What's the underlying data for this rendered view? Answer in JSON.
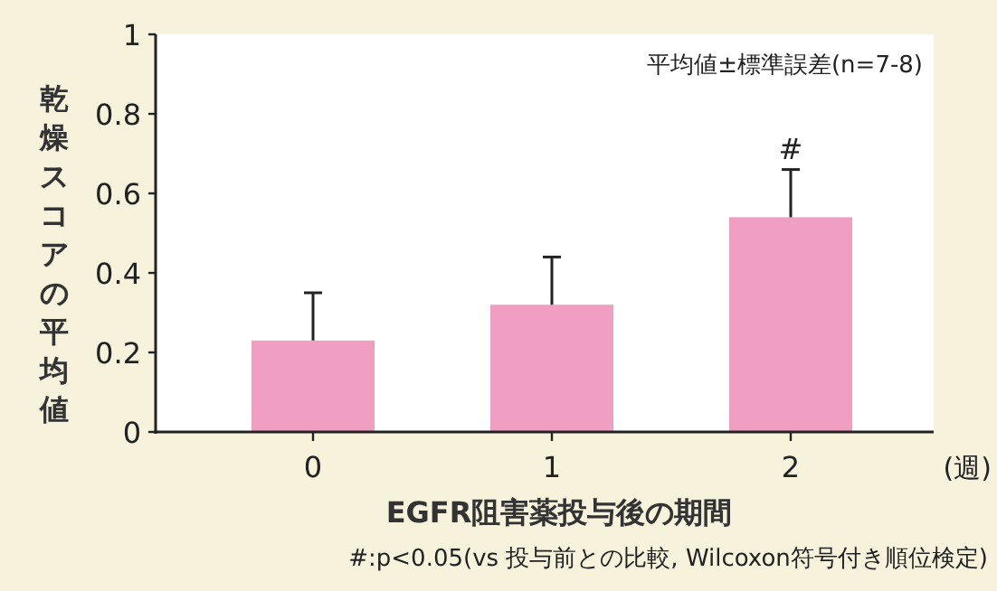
{
  "chart_data": {
    "type": "bar",
    "ylabel": "乾燥スコアの平均値",
    "xlabel": "EGFR阻害薬投与後の期間",
    "categories": [
      "0",
      "1",
      "2"
    ],
    "values": [
      0.23,
      0.32,
      0.54
    ],
    "errors": [
      [
        0.23,
        0.35
      ],
      [
        0.32,
        0.44
      ],
      [
        0.54,
        0.66
      ]
    ],
    "color": "#f09ec2",
    "ylim": [
      0,
      1
    ],
    "yticks": [
      0,
      0.2,
      0.4,
      0.6,
      0.8,
      1
    ],
    "grid": false,
    "annotations": [
      "平均値±標準誤差(n=7-8)",
      {
        "text": "#",
        "x": "2",
        "y": 0.66
      },
      "(週)",
      "#:p<0.05(vs 投与前との比較, Wilcoxon符号付き順位検定)"
    ]
  }
}
